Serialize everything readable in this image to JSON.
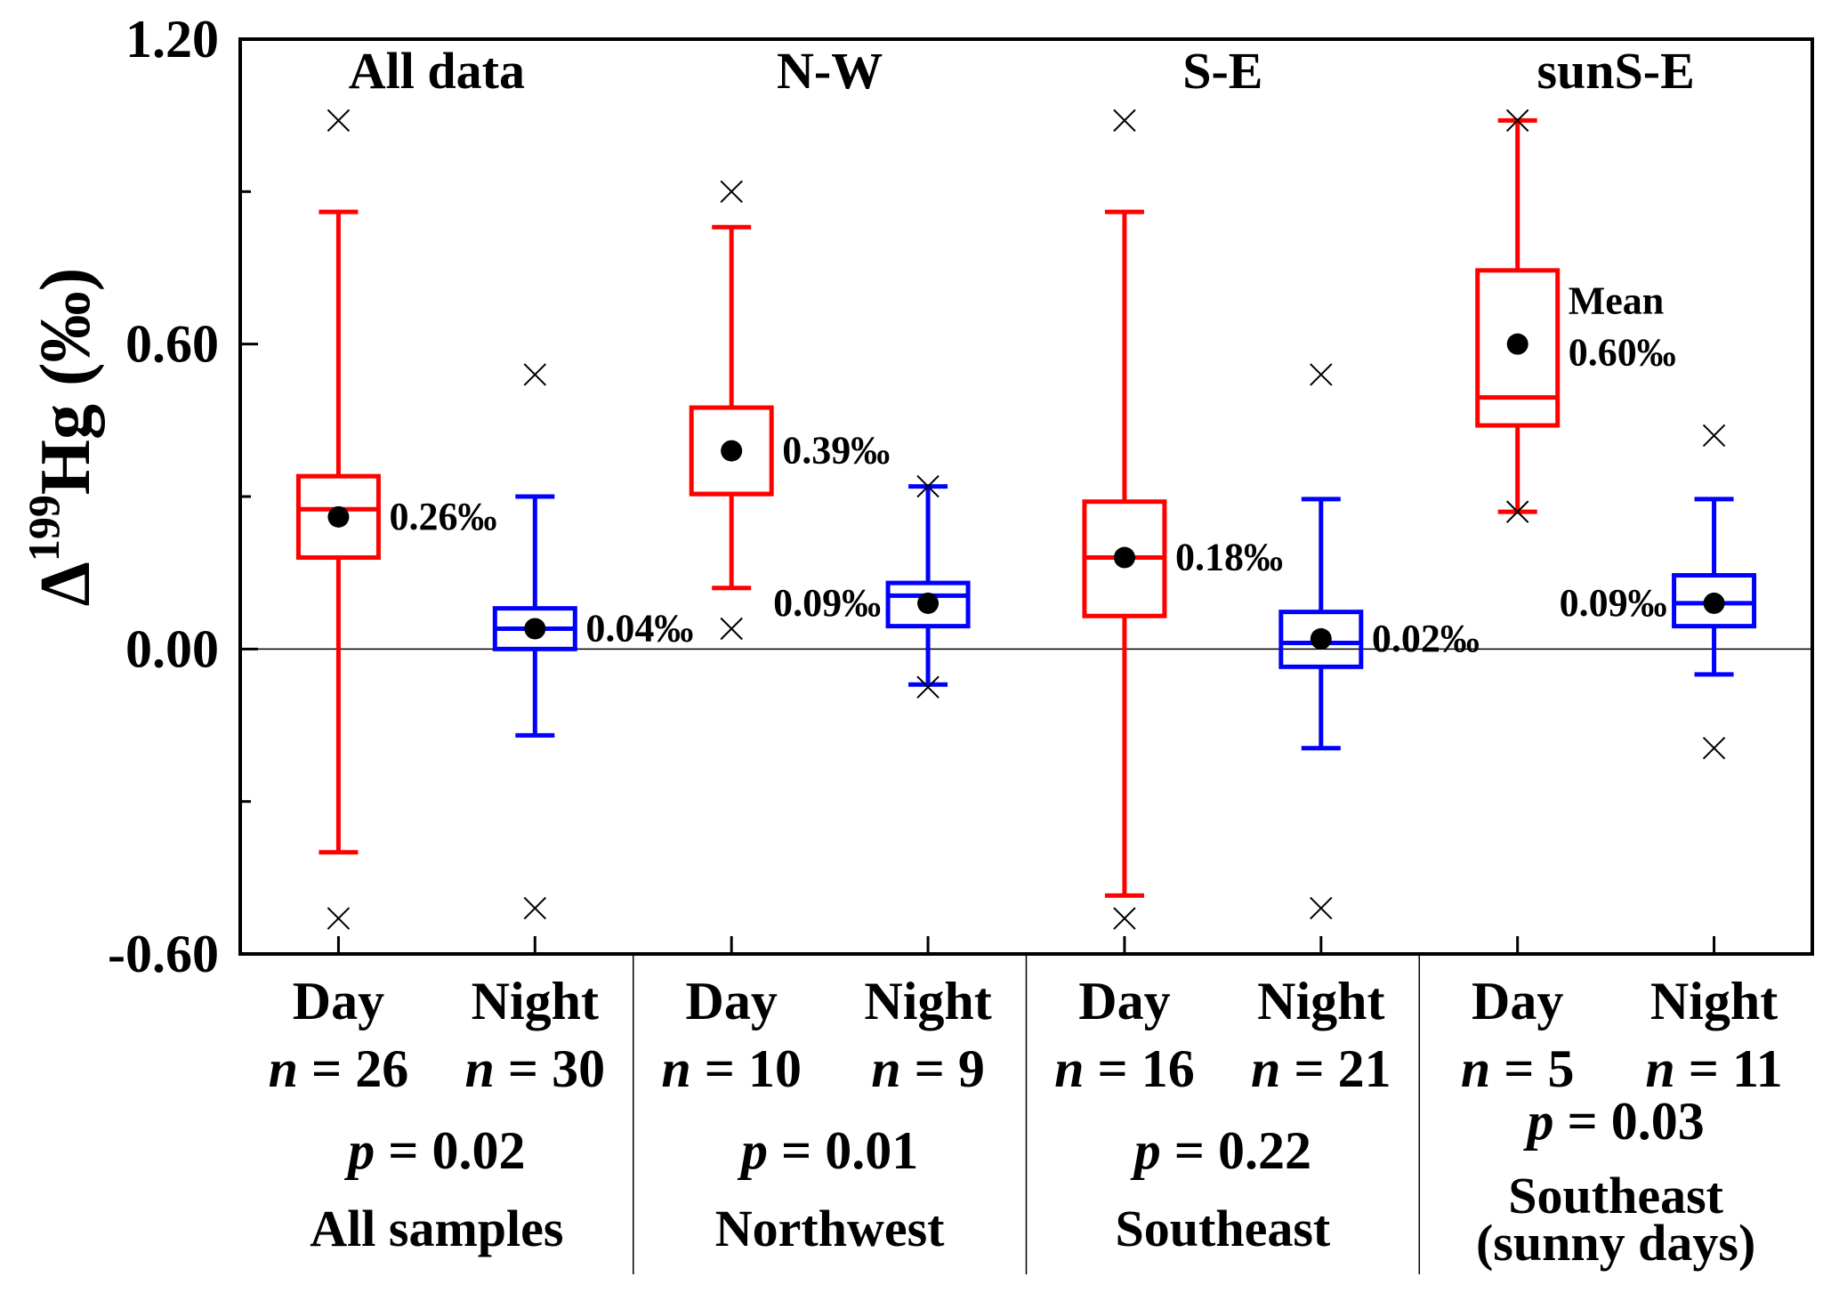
{
  "chart_data": {
    "type": "box",
    "ylabel": {
      "delta": "Δ",
      "isotope": "199",
      "element": "Hg",
      "unit": "(‰)"
    },
    "ylim": [
      -0.6,
      1.2
    ],
    "yticks": [
      {
        "value": 1.2,
        "label": "1.20"
      },
      {
        "value": 0.6,
        "label": "0.60"
      },
      {
        "value": 0.0,
        "label": "0.00"
      },
      {
        "value": -0.6,
        "label": "-0.60"
      }
    ],
    "minor_yticks": [
      0.9,
      0.3,
      -0.3
    ],
    "reference_line": 0.0,
    "groups": [
      {
        "title": "All data",
        "p_label": "p = 0.02",
        "caption": [
          "All samples"
        ],
        "boxes": [
          {
            "category": "Day",
            "n_label": "n = 26",
            "color": "#ff0000",
            "whisker_low": -0.4,
            "q1": 0.18,
            "median": 0.275,
            "q3": 0.34,
            "whisker_high": 0.86,
            "mean": 0.26,
            "mean_label": "0.26‰",
            "extremes": [
              1.04,
              -0.53
            ]
          },
          {
            "category": "Night",
            "n_label": "n = 30",
            "color": "#0000ff",
            "whisker_low": -0.17,
            "q1": 0.0,
            "median": 0.04,
            "q3": 0.08,
            "whisker_high": 0.3,
            "mean": 0.04,
            "mean_label": "0.04‰",
            "extremes": [
              0.54,
              -0.51
            ]
          }
        ]
      },
      {
        "title": "N-W",
        "p_label": "p = 0.01",
        "caption": [
          "Northwest"
        ],
        "boxes": [
          {
            "category": "Day",
            "n_label": "n = 10",
            "color": "#ff0000",
            "whisker_low": 0.12,
            "q1": 0.305,
            "median": 0.305,
            "q3": 0.475,
            "whisker_high": 0.83,
            "mean": 0.39,
            "mean_label": "0.39‰",
            "extremes": [
              0.9,
              0.04
            ]
          },
          {
            "category": "Night",
            "n_label": "n = 9",
            "color": "#0000ff",
            "whisker_low": -0.07,
            "q1": 0.045,
            "median": 0.105,
            "q3": 0.13,
            "whisker_high": 0.32,
            "mean": 0.09,
            "mean_label": "0.09‰",
            "extremes": [
              0.32,
              -0.075
            ]
          }
        ]
      },
      {
        "title": "S-E",
        "p_label": "p = 0.22",
        "caption": [
          "Southeast"
        ],
        "boxes": [
          {
            "category": "Day",
            "n_label": "n = 16",
            "color": "#ff0000",
            "whisker_low": -0.485,
            "q1": 0.065,
            "median": 0.18,
            "q3": 0.29,
            "whisker_high": 0.86,
            "mean": 0.18,
            "mean_label": "0.18‰",
            "extremes": [
              1.04,
              -0.53
            ]
          },
          {
            "category": "Night",
            "n_label": "n = 21",
            "color": "#0000ff",
            "whisker_low": -0.195,
            "q1": -0.035,
            "median": 0.012,
            "q3": 0.073,
            "whisker_high": 0.295,
            "mean": 0.02,
            "mean_label": "0.02‰",
            "extremes": [
              0.54,
              -0.51
            ]
          }
        ]
      },
      {
        "title": "sunS-E",
        "p_label": "p = 0.03",
        "caption": [
          "Southeast",
          "(sunny days)"
        ],
        "boxes": [
          {
            "category": "Day",
            "n_label": "n = 5",
            "color": "#ff0000",
            "whisker_low": 0.27,
            "q1": 0.44,
            "median": 0.495,
            "q3": 0.745,
            "whisker_high": 1.04,
            "mean": 0.6,
            "mean_label": "0.60‰",
            "mean_note": "Mean",
            "extremes": [
              1.04,
              0.27
            ]
          },
          {
            "category": "Night",
            "n_label": "n = 11",
            "color": "#0000ff",
            "whisker_low": -0.05,
            "q1": 0.045,
            "median": 0.09,
            "q3": 0.145,
            "whisker_high": 0.295,
            "mean": 0.09,
            "mean_label": "0.09‰",
            "extremes": [
              0.42,
              -0.195
            ]
          }
        ]
      }
    ]
  }
}
